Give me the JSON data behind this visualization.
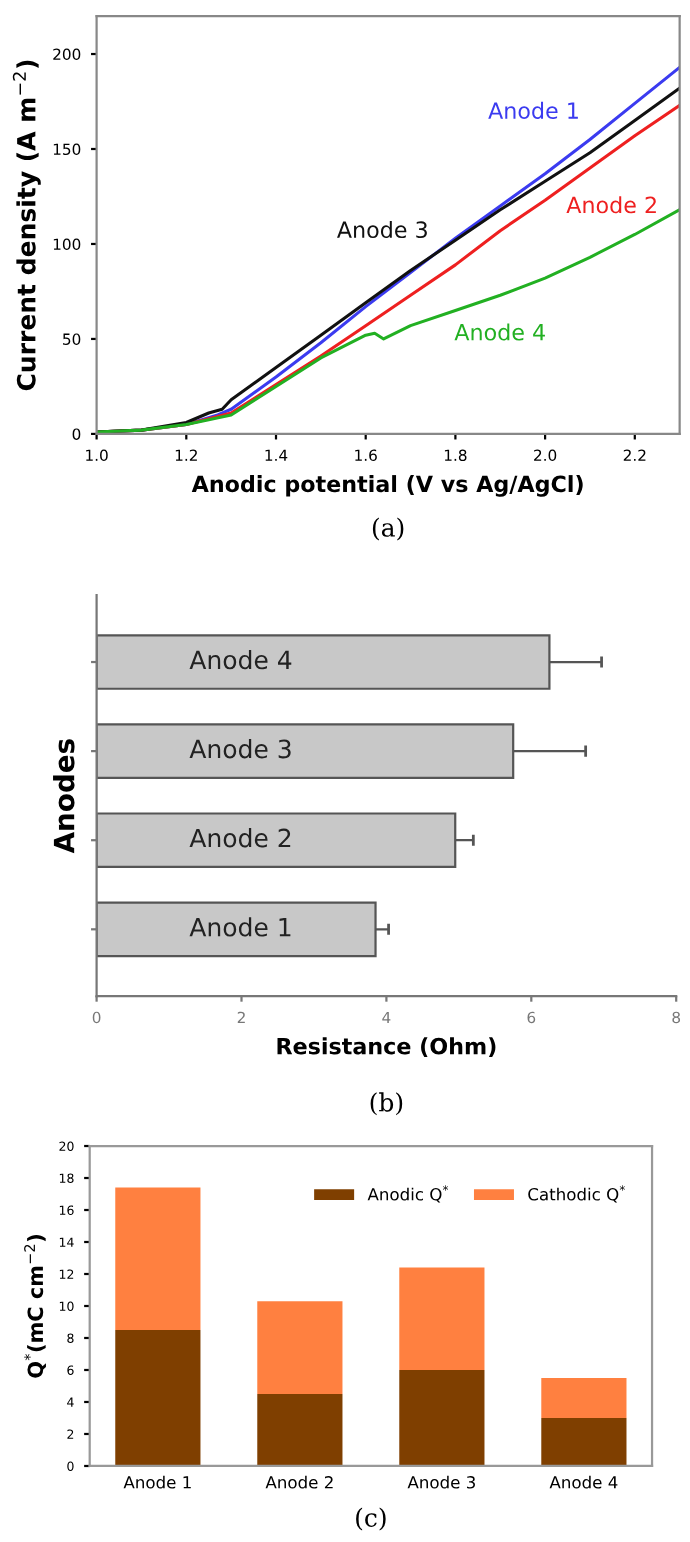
{
  "chart_data": [
    {
      "type": "line",
      "xlabel": "Anodic potential (V vs Ag/AgCl)",
      "ylabel": "Current density (A m$^{−2}$)",
      "xlim": [
        1.0,
        2.3
      ],
      "ylim": [
        0,
        220
      ],
      "xticks": [
        {
          "value": 1.0,
          "label": "1.0"
        },
        {
          "value": 1.2,
          "label": "1.2"
        },
        {
          "value": 1.4,
          "label": "1.4"
        },
        {
          "value": 1.6,
          "label": "1.6"
        },
        {
          "value": 1.8,
          "label": "1.8"
        },
        {
          "value": 2.0,
          "label": "2.0"
        },
        {
          "value": 2.2,
          "label": "2.2"
        }
      ],
      "yticks": [
        0,
        50,
        100,
        150,
        200
      ],
      "marker": "none",
      "line_style": "solid",
      "annotations": [
        "(a)"
      ],
      "series": [
        {
          "name": "Anode 1",
          "color": "#3b3bf0",
          "x": [
            1.0,
            1.1,
            1.2,
            1.27,
            1.3,
            1.4,
            1.5,
            1.6,
            1.7,
            1.8,
            1.9,
            2.0,
            2.1,
            2.2,
            2.3
          ],
          "values": [
            1,
            2,
            5,
            10,
            13,
            30,
            48,
            67,
            85,
            103,
            120,
            137,
            155,
            174,
            193
          ]
        },
        {
          "name": "Anode 2",
          "color": "#ee2020",
          "x": [
            1.0,
            1.1,
            1.2,
            1.3,
            1.4,
            1.5,
            1.6,
            1.7,
            1.8,
            1.9,
            2.0,
            2.1,
            2.2,
            2.3
          ],
          "values": [
            1,
            2,
            5,
            11,
            26,
            41,
            57,
            73,
            89,
            107,
            123,
            140,
            157,
            173
          ]
        },
        {
          "name": "Anode 3",
          "color": "#111111",
          "x": [
            1.0,
            1.1,
            1.2,
            1.25,
            1.28,
            1.3,
            1.4,
            1.5,
            1.6,
            1.7,
            1.8,
            1.9,
            2.0,
            2.1,
            2.2,
            2.3
          ],
          "values": [
            1,
            2,
            6,
            11,
            13,
            18,
            35,
            52,
            69,
            86,
            102,
            118,
            133,
            148,
            165,
            182
          ]
        },
        {
          "name": "Anode 4",
          "color": "#22b022",
          "x": [
            1.0,
            1.1,
            1.2,
            1.3,
            1.4,
            1.5,
            1.6,
            1.62,
            1.64,
            1.7,
            1.8,
            1.9,
            2.0,
            2.1,
            2.2,
            2.3
          ],
          "values": [
            1,
            2,
            5,
            10,
            25,
            40,
            52,
            53,
            50,
            57,
            65,
            73,
            82,
            93,
            105,
            118
          ]
        }
      ]
    },
    {
      "type": "bar",
      "orientation": "horizontal",
      "categories": [
        "Anode 4",
        "Anode 3",
        "Anode 2",
        "Anode 1"
      ],
      "values": [
        6.25,
        5.75,
        4.95,
        3.85
      ],
      "errors": [
        0.72,
        1.0,
        0.25,
        0.18
      ],
      "color": "#c8c8c8",
      "xlabel": "Resistance (Ohm)",
      "ylabel": "Anodes",
      "xlim": [
        0,
        8
      ],
      "xticks": [
        0,
        2,
        4,
        6,
        8
      ],
      "tick_labels": "x",
      "annotations": [
        "(b)"
      ]
    },
    {
      "type": "bar",
      "stacked": true,
      "categories": [
        "Anode 1",
        "Anode 2",
        "Anode 3",
        "Anode 4"
      ],
      "ylabel": "Q$^{*}$(mC cm$^{−2}$)",
      "ylim": [
        0,
        20
      ],
      "yticks": [
        0,
        2,
        4,
        6,
        8,
        10,
        12,
        14,
        16,
        18,
        20
      ],
      "legend": "top right",
      "annotations": [
        "(c)"
      ],
      "series": [
        {
          "name": "Anodic Q$^{*}$",
          "color": "#7f3f00",
          "values": [
            8.5,
            4.5,
            6.0,
            3.0
          ]
        },
        {
          "name": "Cathodic Q$^{*}$",
          "color": "#ff8040",
          "values": [
            8.9,
            5.8,
            6.4,
            2.5
          ]
        }
      ]
    }
  ]
}
